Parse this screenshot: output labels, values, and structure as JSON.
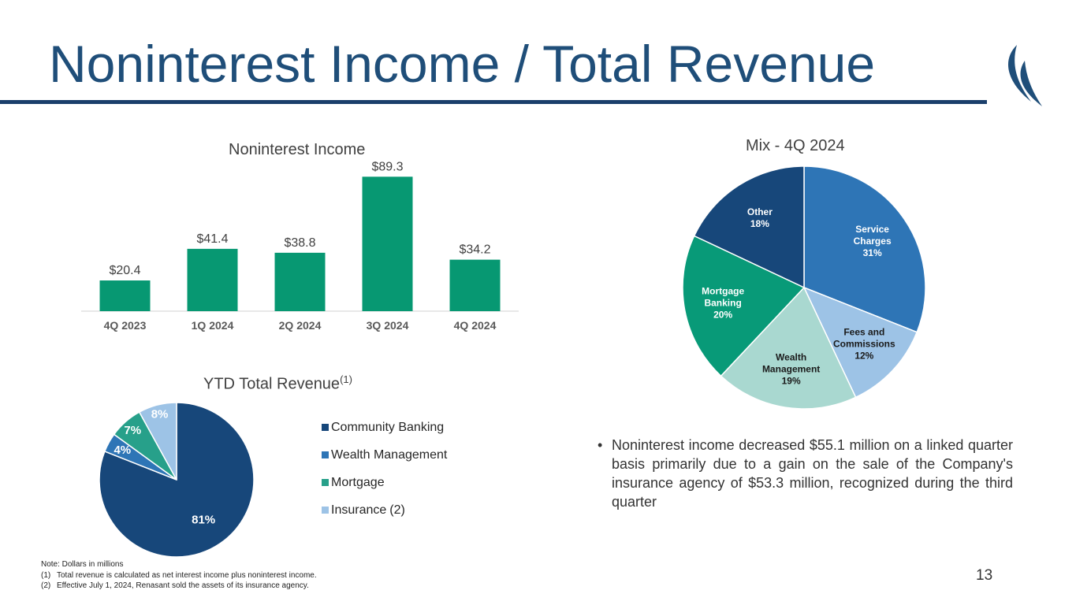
{
  "title": "Noninterest Income / Total Revenue",
  "colors": {
    "title": "#1f4e79",
    "rule": "#1b3f6b",
    "bar": "#079872",
    "pie_dark_blue": "#17477a",
    "pie_mid_blue": "#2e75b6",
    "pie_teal": "#27a08a",
    "pie_light_blue": "#9dc3e6",
    "pie_mint": "#a9d8d0",
    "pie_green": "#089a78"
  },
  "noninterest_income": {
    "title": "Noninterest Income"
  },
  "mix": {
    "title": "Mix - 4Q 2024"
  },
  "ytd": {
    "title": "YTD Total Revenue",
    "title_sup": "(1)",
    "legend": [
      {
        "label": "Community Banking",
        "note": ""
      },
      {
        "label": "Wealth Management",
        "note": ""
      },
      {
        "label": "Mortgage",
        "note": ""
      },
      {
        "label": "Insurance",
        "note": "(2)"
      }
    ]
  },
  "chart_data": [
    {
      "type": "bar",
      "title": "Noninterest Income",
      "categories": [
        "4Q 2023",
        "1Q 2024",
        "2Q 2024",
        "3Q 2024",
        "4Q 2024"
      ],
      "values": [
        20.4,
        41.4,
        38.8,
        89.3,
        34.2
      ],
      "data_labels": [
        "$20.4",
        "$41.4",
        "$38.8",
        "$89.3",
        "$34.2"
      ],
      "ylim": [
        0,
        90
      ],
      "grid": false
    },
    {
      "type": "pie",
      "title": "Mix - 4Q 2024",
      "slices": [
        {
          "label_lines": [
            "Service",
            "Charges",
            "31%"
          ],
          "value": 31,
          "color": "#2e75b6",
          "text_color": "#ffffff"
        },
        {
          "label_lines": [
            "Fees and",
            "Commissions",
            "12%"
          ],
          "value": 12,
          "color": "#9dc3e6",
          "text_color": "#1a1a1a"
        },
        {
          "label_lines": [
            "Wealth",
            "Management",
            "19%"
          ],
          "value": 19,
          "color": "#a9d8d0",
          "text_color": "#1a1a1a"
        },
        {
          "label_lines": [
            "Mortgage",
            "Banking",
            "20%"
          ],
          "value": 20,
          "color": "#089a78",
          "text_color": "#ffffff"
        },
        {
          "label_lines": [
            "Other",
            "18%"
          ],
          "value": 18,
          "color": "#17477a",
          "text_color": "#ffffff"
        }
      ]
    },
    {
      "type": "pie",
      "title": "YTD Total Revenue",
      "slices": [
        {
          "name": "Community Banking",
          "value": 81,
          "label": "81%",
          "color": "#17477a"
        },
        {
          "name": "Wealth Management",
          "value": 4,
          "label": "4%",
          "color": "#2e75b6"
        },
        {
          "name": "Mortgage",
          "value": 7,
          "label": "7%",
          "color": "#27a08a"
        },
        {
          "name": "Insurance",
          "value": 8,
          "label": "8%",
          "color": "#9dc3e6"
        }
      ],
      "legend_position": "right"
    }
  ],
  "bullet": {
    "mark": "•",
    "text": "Noninterest income decreased $55.1 million on a linked quarter basis primarily due to a gain on the sale of the Company's insurance agency of $53.3 million, recognized during the third quarter"
  },
  "notes": {
    "heading": "Note: Dollars in millions",
    "items": [
      {
        "num": "(1)",
        "text": "Total revenue is calculated as net interest income plus noninterest income."
      },
      {
        "num": "(2)",
        "text": "Effective July 1, 2024, Renasant sold the assets of its insurance agency."
      }
    ]
  },
  "page_number": "13",
  "logo_icon": "renasant-swoosh-logo-icon"
}
